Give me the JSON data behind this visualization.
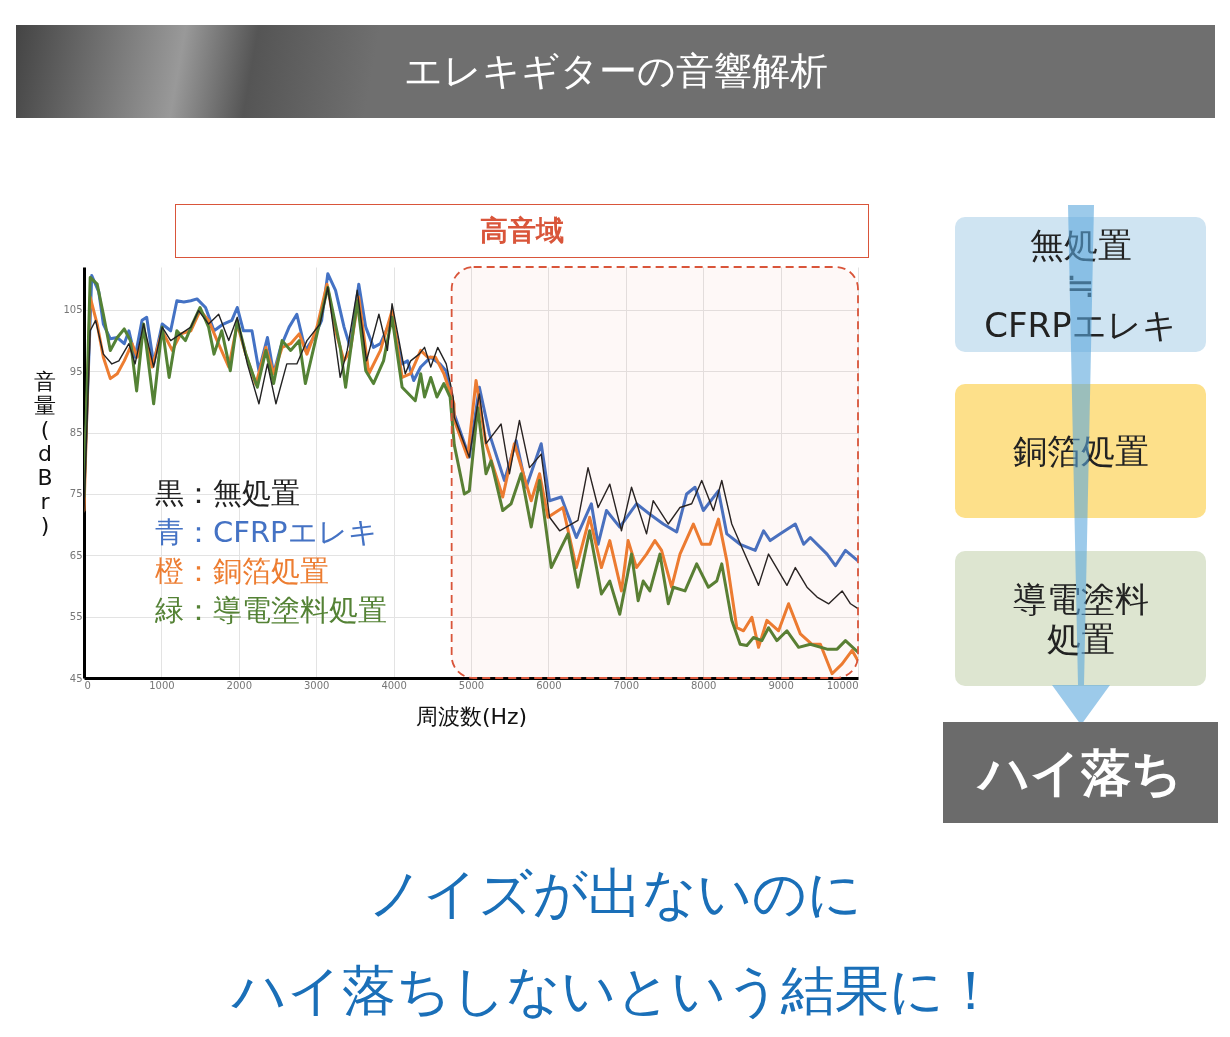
{
  "chart_data": {
    "type": "line",
    "title": "エレキギターの音響解析",
    "xlabel": "周波数(Hz)",
    "ylabel": "音量(dBr)",
    "xlim": [
      0,
      10000
    ],
    "xticks": [
      0,
      1000,
      2000,
      3000,
      4000,
      5000,
      6000,
      7000,
      8000,
      9000,
      10000
    ],
    "ylim": [
      45,
      112
    ],
    "yticks": [
      45,
      55,
      65,
      75,
      85,
      95,
      105
    ],
    "grid": true,
    "legend": "left",
    "marker": "none",
    "line_style": "solid",
    "bands": [
      {
        "axis": "x",
        "from": 4750,
        "to": 10000,
        "label": "高音域",
        "color": "#d9553a"
      }
    ],
    "annotations": [
      "無処置",
      "≒",
      "CFRPエレキ",
      "銅箔処置",
      "導電塗料処置",
      "ハイ落ち",
      "ノイズが出ないのに",
      "ハイ落ちしないという結果に！"
    ],
    "series": [
      {
        "name": "黒：無処置",
        "color": "#222222",
        "x": [
          0,
          80,
          150,
          250,
          360,
          450,
          580,
          660,
          770,
          900,
          1010,
          1120,
          1250,
          1380,
          1480,
          1610,
          1740,
          1870,
          1980,
          2110,
          2260,
          2370,
          2480,
          2620,
          2750,
          2880,
          3050,
          3150,
          3310,
          3400,
          3530,
          3650,
          3810,
          3920,
          3980,
          4150,
          4220,
          4330,
          4400,
          4480,
          4570,
          4680,
          4770,
          4784,
          4978,
          5108,
          5194,
          5389,
          5497,
          5626,
          5756,
          5907,
          6015,
          6145,
          6382,
          6512,
          6642,
          6793,
          6944,
          7074,
          7268,
          7354,
          7549,
          7700,
          7851,
          7981,
          8132,
          8240,
          8369,
          8499,
          8715,
          8844,
          9082,
          9190,
          9341,
          9471,
          9622,
          9795,
          9903,
          10000
        ],
        "values": [
          72,
          101.6,
          103.3,
          97.8,
          96.2,
          96.7,
          99.5,
          96.2,
          102.7,
          95.7,
          102.2,
          100,
          101.1,
          102.2,
          104.9,
          102.7,
          104.3,
          100,
          103.8,
          96.2,
          89.7,
          96.2,
          89.7,
          96.2,
          96.2,
          100,
          102.7,
          108.7,
          94,
          98.4,
          108.2,
          96.7,
          104.3,
          98.4,
          106,
          94.6,
          96.7,
          97.8,
          98.9,
          95.7,
          98.9,
          96.2,
          90.8,
          87.5,
          81,
          91.3,
          83.2,
          86.4,
          78.3,
          87,
          79.3,
          81.5,
          71.2,
          69,
          70.7,
          79.3,
          72.8,
          76.6,
          69,
          76.1,
          68.5,
          73.9,
          70.1,
          72.8,
          73.4,
          77.2,
          72.3,
          77.2,
          70.1,
          66.3,
          60.1,
          65.2,
          60.1,
          63,
          59.8,
          58.2,
          57.1,
          59.2,
          57.1,
          56.3
        ]
      },
      {
        "name": "青：CFRPエレキ",
        "color": "#4472c4",
        "x": [
          0,
          100,
          190,
          250,
          340,
          430,
          520,
          580,
          660,
          750,
          810,
          900,
          1010,
          1120,
          1200,
          1290,
          1380,
          1460,
          1570,
          1680,
          1800,
          1910,
          1980,
          2060,
          2170,
          2260,
          2370,
          2450,
          2540,
          2650,
          2750,
          2860,
          2970,
          3070,
          3150,
          3250,
          3360,
          3440,
          3550,
          3640,
          3740,
          3830,
          3980,
          4110,
          4180,
          4260,
          4350,
          4480,
          4600,
          4676,
          4784,
          4978,
          5108,
          5238,
          5432,
          5583,
          5713,
          5907,
          6015,
          6166,
          6361,
          6555,
          6642,
          6750,
          6922,
          7138,
          7311,
          7484,
          7657,
          7786,
          7894,
          8002,
          8197,
          8305,
          8477,
          8672,
          8780,
          8866,
          8996,
          9190,
          9298,
          9384,
          9600,
          9708,
          9838,
          10000
        ],
        "values": [
          75,
          110.6,
          108,
          102.7,
          100.3,
          100.5,
          99.5,
          101.6,
          97.3,
          103.3,
          103.8,
          96.2,
          102.7,
          101.6,
          106.5,
          106.3,
          106.5,
          106.8,
          105.4,
          101.6,
          102.7,
          103.3,
          105.4,
          101.6,
          101.6,
          95.1,
          100.5,
          94.6,
          98.9,
          102.2,
          104.3,
          98.4,
          100.5,
          103.3,
          110.9,
          108.2,
          102.2,
          98.9,
          109.2,
          102.2,
          98.9,
          99.5,
          103.8,
          96.2,
          96.7,
          93.5,
          95.7,
          97.3,
          96.2,
          95.1,
          88,
          81,
          92.4,
          84.8,
          77.2,
          83.7,
          76.1,
          83.2,
          73.9,
          74.5,
          67.9,
          73.4,
          66.8,
          72.3,
          69.6,
          73.4,
          71.7,
          70.1,
          68.8,
          75,
          76.1,
          72.3,
          75.5,
          68.5,
          66.8,
          65.8,
          69,
          67.4,
          68.5,
          70.1,
          66.8,
          67.9,
          65.2,
          63.3,
          65.8,
          64.1
        ]
      },
      {
        "name": "橙：銅箔処置",
        "color": "#ed7d31",
        "x": [
          0,
          80,
          170,
          250,
          340,
          430,
          520,
          620,
          690,
          770,
          880,
          1010,
          1140,
          1250,
          1380,
          1500,
          1610,
          1720,
          1870,
          1980,
          2090,
          2220,
          2350,
          2450,
          2560,
          2670,
          2780,
          2880,
          3010,
          3140,
          3250,
          3360,
          3440,
          3550,
          3680,
          3830,
          3980,
          4110,
          4220,
          4350,
          4440,
          4540,
          4650,
          4780,
          4784,
          4957,
          5065,
          5194,
          5410,
          5561,
          5778,
          5886,
          5994,
          6188,
          6361,
          6533,
          6685,
          6793,
          6944,
          7030,
          7138,
          7268,
          7376,
          7462,
          7592,
          7700,
          7873,
          7981,
          8089,
          8197,
          8305,
          8434,
          8521,
          8629,
          8715,
          8823,
          8974,
          9103,
          9255,
          9406,
          9514,
          9665,
          9795,
          9924,
          10000
        ],
        "values": [
          72.3,
          107.1,
          102.7,
          97.3,
          93.8,
          94.6,
          96.7,
          99.5,
          97.3,
          101.6,
          95.7,
          101.6,
          98.4,
          101.1,
          101.6,
          104.9,
          103.3,
          100,
          95.7,
          102.7,
          97.8,
          92.9,
          98.9,
          94.6,
          98.9,
          99.5,
          101.1,
          97.8,
          102.2,
          109.2,
          101.6,
          96.7,
          98.4,
          107.1,
          94.6,
          98.4,
          104.9,
          94,
          94.6,
          98.4,
          97.3,
          97.3,
          94.6,
          89.7,
          87,
          81,
          93.5,
          83.2,
          74.5,
          83.2,
          73.9,
          78.3,
          71.2,
          72.8,
          63,
          71.2,
          63,
          67.4,
          59.2,
          67.4,
          63,
          65.2,
          67.4,
          65.8,
          59.8,
          65.2,
          70.1,
          66.8,
          66.8,
          70.9,
          64.1,
          53.2,
          52.7,
          54.9,
          50,
          54.4,
          52.7,
          57.1,
          52.2,
          50.5,
          50.5,
          45.7,
          47.3,
          49.5,
          47.8
        ]
      },
      {
        "name": "緑：導電塗料処置",
        "color": "#548235",
        "x": [
          0,
          80,
          170,
          250,
          340,
          430,
          520,
          600,
          680,
          770,
          900,
          1010,
          1100,
          1200,
          1310,
          1400,
          1500,
          1610,
          1680,
          1780,
          1890,
          1980,
          2090,
          2240,
          2350,
          2450,
          2560,
          2670,
          2780,
          2860,
          2990,
          3150,
          3310,
          3380,
          3530,
          3640,
          3740,
          3870,
          3980,
          4110,
          4280,
          4350,
          4400,
          4480,
          4560,
          4650,
          4730,
          4784,
          4914,
          4978,
          5086,
          5194,
          5259,
          5410,
          5518,
          5648,
          5778,
          5886,
          6037,
          6166,
          6253,
          6382,
          6533,
          6685,
          6793,
          6922,
          7074,
          7160,
          7225,
          7311,
          7441,
          7549,
          7614,
          7765,
          7916,
          8067,
          8175,
          8240,
          8369,
          8477,
          8564,
          8650,
          8758,
          8844,
          8952,
          9082,
          9233,
          9384,
          9600,
          9730,
          9838,
          10000
        ],
        "values": [
          74.5,
          110.3,
          109.2,
          104.3,
          98.4,
          100.5,
          101.9,
          100,
          91.8,
          102.7,
          89.7,
          102.2,
          94,
          101.6,
          100,
          102.7,
          105.4,
          102.2,
          97.8,
          101.6,
          95.1,
          103.3,
          97.8,
          92.4,
          98.4,
          93,
          100,
          98.4,
          100,
          93,
          100,
          108.7,
          98.9,
          92.4,
          106.5,
          95.1,
          93,
          96.7,
          103.8,
          92.4,
          90.2,
          94.6,
          90.8,
          94,
          90.8,
          93,
          90.8,
          83,
          75,
          75.5,
          89.1,
          78.3,
          80.4,
          72.3,
          73.4,
          78.3,
          69.6,
          77.2,
          63,
          66.3,
          68.5,
          59.8,
          69,
          58.7,
          60.8,
          55.4,
          65.2,
          57.6,
          60.8,
          59.2,
          65.2,
          57.1,
          59.8,
          59.2,
          63.6,
          59.8,
          60.8,
          63.6,
          54.4,
          50.5,
          50.3,
          51.6,
          51.1,
          53.2,
          51.1,
          52.7,
          50,
          50.5,
          49.7,
          49.7,
          51.1,
          49.2
        ]
      }
    ]
  }
}
